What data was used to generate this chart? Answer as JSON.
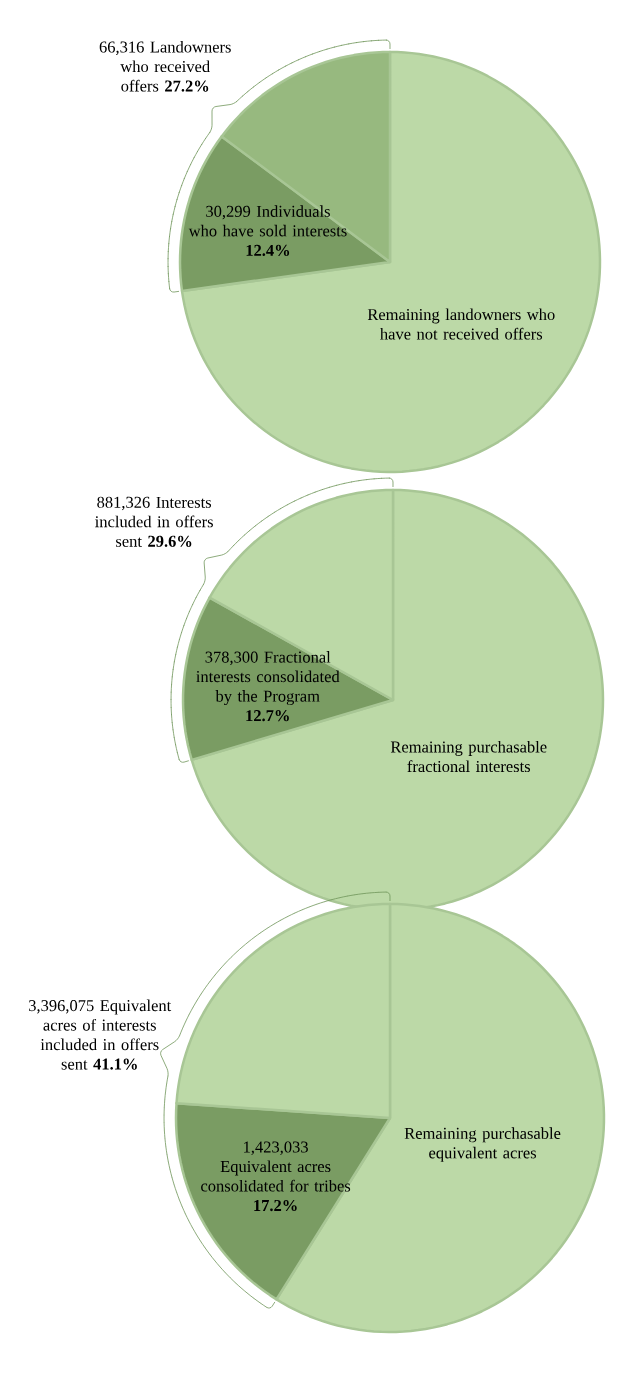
{
  "chart_data": [
    {
      "type": "pie",
      "categories": [
        "Remaining landowners who have not received offers",
        "30,299 Individuals who have sold interests",
        null
      ],
      "values": [
        72.8,
        12.4,
        14.8
      ],
      "colors": [
        "#bcd9a7",
        "#7a9c63",
        "#97b97f"
      ],
      "value_labels": [
        null,
        "12.4%",
        null
      ],
      "annotations": [
        "66,316 Landowners who received offers **27.2%**"
      ]
    },
    {
      "type": "pie",
      "categories": [
        "Remaining purchasable fractional interests",
        "378,300 Fractional interests consolidated by the Program",
        null
      ],
      "values": [
        70.4,
        12.7,
        16.9
      ],
      "colors": [
        "#bcd9a7",
        "#7a9c63",
        "#bcd9a7"
      ],
      "value_labels": [
        null,
        "12.7%",
        null
      ],
      "annotations": [
        "881,326 Interests included in offers sent **29.6%**"
      ]
    },
    {
      "type": "pie",
      "categories": [
        "Remaining purchasable equivalent acres",
        "1,423,033 Equivalent acres consolidated for tribes",
        null
      ],
      "values": [
        58.9,
        17.2,
        23.9
      ],
      "colors": [
        "#bcd9a7",
        "#7a9c63",
        "#bcd9a7"
      ],
      "value_labels": [
        null,
        "17.2%",
        null
      ],
      "annotations": [
        "3,396,075 Equivalent acres of interests included in offers sent **41.1%**"
      ]
    }
  ]
}
